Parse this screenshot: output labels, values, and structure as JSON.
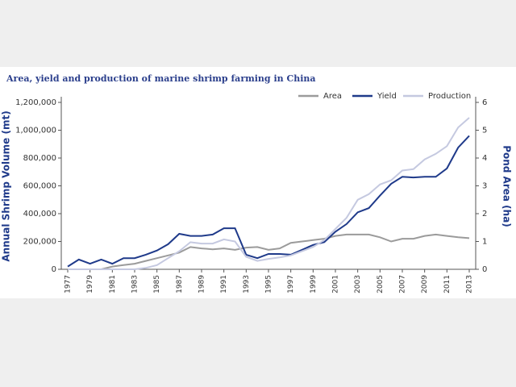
{
  "chart_data": {
    "type": "line",
    "title": "Area, yield and production of marine shrimp farming in China",
    "y_label": "Annual Shrimp Volume (mt)",
    "y2_label": "Pond Area (ha)",
    "x": [
      1977,
      1978,
      1979,
      1980,
      1981,
      1982,
      1983,
      1984,
      1985,
      1986,
      1987,
      1988,
      1989,
      1990,
      1991,
      1992,
      1993,
      1994,
      1995,
      1996,
      1997,
      1998,
      1999,
      2000,
      2001,
      2002,
      2003,
      2004,
      2005,
      2006,
      2007,
      2008,
      2009,
      2010,
      2011,
      2012,
      2013
    ],
    "xlim": [
      1977,
      2013
    ],
    "xticks": [
      1977,
      1979,
      1981,
      1983,
      1985,
      1987,
      1989,
      1991,
      1993,
      1995,
      1997,
      1999,
      2001,
      2003,
      2005,
      2007,
      2009,
      2011,
      2013
    ],
    "ylim": [
      0,
      1200000
    ],
    "yticks": [
      0,
      {
        "value": 200000,
        "label": "200,000"
      },
      {
        "value": 400000,
        "label": "400,000"
      },
      {
        "value": 600000,
        "label": "600,000"
      },
      {
        "value": 800000,
        "label": "800,000"
      },
      {
        "value": 1000000,
        "label": "1,000,000"
      },
      {
        "value": 1200000,
        "label": "1,200,000"
      }
    ],
    "y2lim": [
      0,
      6
    ],
    "y2ticks": [
      0,
      1,
      2,
      3,
      4,
      5,
      6
    ],
    "legend": "top-right",
    "series": [
      {
        "name": "Area",
        "color": "#9b9b9b",
        "axis": "y2",
        "values": [
          0,
          0,
          0,
          0,
          0.1,
          0.15,
          0.2,
          0.3,
          0.4,
          0.5,
          0.6,
          0.8,
          0.75,
          0.72,
          0.75,
          0.7,
          0.78,
          0.8,
          0.7,
          0.75,
          0.95,
          1.0,
          1.05,
          1.1,
          1.2,
          1.25,
          1.25,
          1.25,
          1.15,
          1.0,
          1.1,
          1.1,
          1.2,
          1.25,
          1.2,
          1.15,
          1.12
        ]
      },
      {
        "name": "Yield",
        "color": "#1f3a8a",
        "values": [
          20000,
          70000,
          40000,
          70000,
          40000,
          80000,
          80000,
          105000,
          135000,
          180000,
          255000,
          240000,
          240000,
          250000,
          295000,
          295000,
          105000,
          80000,
          110000,
          110000,
          105000,
          140000,
          175000,
          195000,
          270000,
          325000,
          410000,
          440000,
          530000,
          615000,
          665000,
          660000,
          665000,
          665000,
          725000,
          875000,
          960000
        ]
      },
      {
        "name": "Production",
        "color": "#c5c9e0",
        "values": [
          0,
          0,
          0,
          0,
          0,
          0,
          0,
          10000,
          30000,
          80000,
          130000,
          195000,
          185000,
          185000,
          215000,
          200000,
          90000,
          60000,
          75000,
          85000,
          100000,
          130000,
          160000,
          210000,
          290000,
          370000,
          500000,
          540000,
          610000,
          640000,
          710000,
          720000,
          790000,
          830000,
          885000,
          1020000,
          1090000
        ]
      }
    ]
  }
}
